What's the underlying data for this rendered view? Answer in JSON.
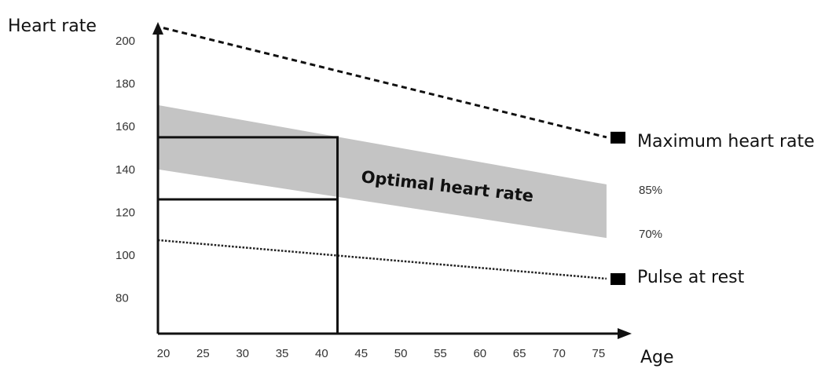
{
  "chart_data": {
    "type": "line",
    "xlabel": "Age",
    "ylabel": "Heart rate",
    "x_ticks": [
      20,
      25,
      30,
      35,
      40,
      45,
      50,
      55,
      60,
      65,
      70,
      75
    ],
    "y_ticks": [
      80,
      100,
      120,
      140,
      160,
      180,
      200
    ],
    "xlim": [
      19.3,
      76
    ],
    "ylim": [
      63,
      207
    ],
    "grid": false,
    "series": [
      {
        "name": "Maximum heart rate",
        "style": "dashed",
        "x": [
          20,
          76
        ],
        "y": [
          206,
          155
        ]
      },
      {
        "name": "Pulse at rest",
        "style": "dotted",
        "x": [
          19.3,
          76
        ],
        "y": [
          107,
          89
        ]
      }
    ],
    "band": {
      "label": "Optimal heart rate",
      "upper_label": "85%",
      "lower_label": "70%",
      "x": [
        19.3,
        76
      ],
      "upper": [
        170,
        133
      ],
      "lower": [
        140,
        108
      ],
      "color": "#c4c4c4"
    },
    "example_box": {
      "age": 42,
      "upper": 155,
      "lower": 126
    }
  }
}
